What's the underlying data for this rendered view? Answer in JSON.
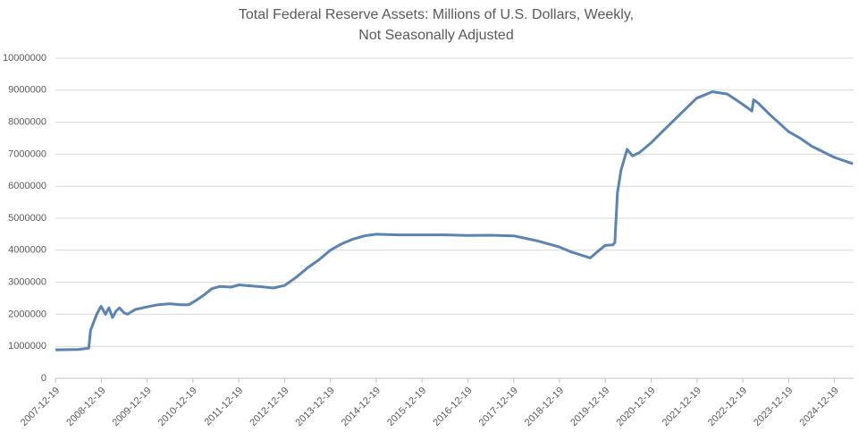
{
  "chart_data": {
    "type": "line",
    "title": [
      "Total Federal Reserve Assets: Millions of U.S. Dollars, Weekly,",
      "Not Seasonally Adjusted"
    ],
    "x": [
      "2007-12-19",
      "2008-06-18",
      "2008-09-10",
      "2008-09-24",
      "2008-11-12",
      "2008-12-17",
      "2009-01-21",
      "2009-02-18",
      "2009-03-18",
      "2009-04-15",
      "2009-05-13",
      "2009-06-17",
      "2009-07-15",
      "2009-09-16",
      "2009-12-16",
      "2010-03-17",
      "2010-06-16",
      "2010-09-15",
      "2010-11-17",
      "2011-01-19",
      "2011-03-16",
      "2011-05-18",
      "2011-07-20",
      "2011-10-19",
      "2011-12-21",
      "2012-02-15",
      "2012-06-20",
      "2012-09-19",
      "2012-12-19",
      "2013-03-20",
      "2013-06-19",
      "2013-09-18",
      "2013-12-18",
      "2014-03-19",
      "2014-06-18",
      "2014-09-17",
      "2014-12-17",
      "2015-06-17",
      "2016-06-15",
      "2016-12-21",
      "2017-06-21",
      "2017-12-20",
      "2018-06-20",
      "2018-12-19",
      "2019-03-20",
      "2019-08-21",
      "2019-10-16",
      "2019-12-18",
      "2020-02-19",
      "2020-03-04",
      "2020-03-25",
      "2020-04-22",
      "2020-06-10",
      "2020-07-22",
      "2020-09-16",
      "2020-12-16",
      "2021-03-17",
      "2021-06-16",
      "2021-09-15",
      "2021-12-15",
      "2022-04-20",
      "2022-08-17",
      "2022-12-21",
      "2023-03-01",
      "2023-03-15",
      "2023-04-19",
      "2023-07-19",
      "2023-12-20",
      "2024-03-20",
      "2024-06-19",
      "2024-12-18",
      "2025-05-14"
    ],
    "series": [
      {
        "color": "#5b84b1",
        "values": [
          890000,
          900000,
          940000,
          1500000,
          2000000,
          2250000,
          2000000,
          2200000,
          1900000,
          2100000,
          2200000,
          2050000,
          2000000,
          2150000,
          2230000,
          2300000,
          2330000,
          2300000,
          2300000,
          2450000,
          2600000,
          2800000,
          2870000,
          2850000,
          2920000,
          2900000,
          2860000,
          2820000,
          2900000,
          3150000,
          3450000,
          3700000,
          4000000,
          4200000,
          4350000,
          4450000,
          4500000,
          4480000,
          4480000,
          4460000,
          4470000,
          4450000,
          4300000,
          4100000,
          3950000,
          3760000,
          3950000,
          4150000,
          4170000,
          4240000,
          5800000,
          6500000,
          7150000,
          6950000,
          7050000,
          7350000,
          7700000,
          8050000,
          8400000,
          8750000,
          8950000,
          8880000,
          8550000,
          8350000,
          8700000,
          8600000,
          8250000,
          7700000,
          7500000,
          7250000,
          6900000,
          6700000
        ]
      }
    ],
    "xlim": [
      "2007-12-19",
      "2025-05-20"
    ],
    "xticks": [
      "2007-12-19",
      "2008-12-19",
      "2009-12-19",
      "2010-12-19",
      "2011-12-19",
      "2012-12-19",
      "2013-12-19",
      "2014-12-19",
      "2015-12-19",
      "2016-12-19",
      "2017-12-19",
      "2018-12-19",
      "2019-12-19",
      "2020-12-19",
      "2021-12-19",
      "2022-12-19",
      "2023-12-19",
      "2024-12-19"
    ],
    "ylim": [
      0,
      10000000
    ],
    "yticks": [
      0,
      1000000,
      2000000,
      3000000,
      4000000,
      5000000,
      6000000,
      7000000,
      8000000,
      9000000,
      10000000
    ],
    "grid": true
  }
}
